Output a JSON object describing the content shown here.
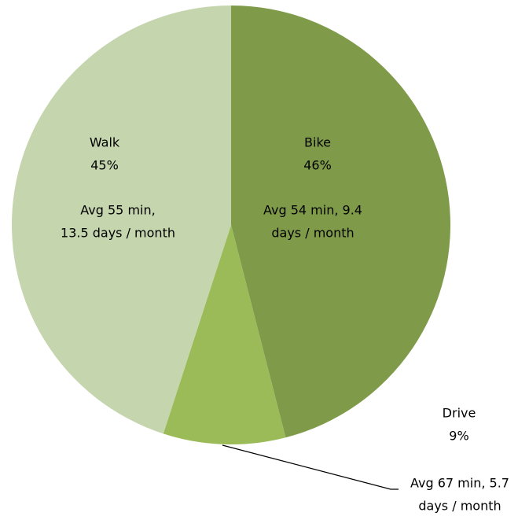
{
  "chart_data": {
    "type": "pie",
    "categories": [
      "Bike",
      "Drive",
      "Walk"
    ],
    "values": [
      46,
      9,
      45
    ],
    "value_labels": [
      "46%",
      "9%",
      "45%"
    ],
    "details": [
      [
        "Avg 54 min, 9.4",
        "days / month"
      ],
      [
        "Avg 67 min, 5.7",
        "days / month"
      ],
      [
        "Avg 55 min,",
        "13.5 days / month"
      ]
    ],
    "colors": [
      "#7f9b4a",
      "#9bbb59",
      "#c5d5ae"
    ]
  }
}
